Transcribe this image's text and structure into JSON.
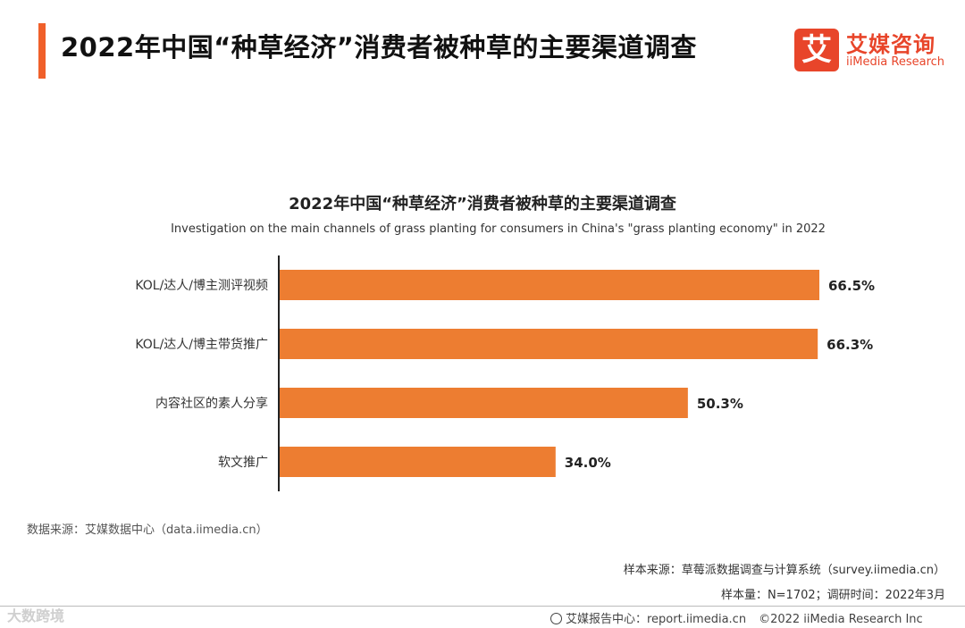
{
  "header": {
    "title": "2022年中国“种草经济”消费者被种草的主要渠道调查",
    "logo_mark": "艾",
    "logo_cn": "艾媒咨询",
    "logo_en": "iiMedia Research"
  },
  "colors": {
    "accent": "#f0602a",
    "bar": "#ed7d31",
    "logo": "#e8452a"
  },
  "chart_data": {
    "type": "bar",
    "orientation": "horizontal",
    "title": "2022年中国“种草经济”消费者被种草的主要渠道调查",
    "subtitle": "Investigation on the main channels of grass planting for consumers in China's \"grass planting economy\" in 2022",
    "categories": [
      "KOL/达人/博主测评视频",
      "KOL/达人/博主带货推广",
      "内容社区的素人分享",
      "软文推广"
    ],
    "values": [
      66.5,
      66.3,
      50.3,
      34.0
    ],
    "value_labels": [
      "66.5%",
      "66.3%",
      "50.3%",
      "34.0%"
    ],
    "unit": "%",
    "xlim": [
      0,
      66.5
    ],
    "grid": false,
    "legend": "none"
  },
  "sources": {
    "data_source": "数据来源：艾媒数据中心（data.iimedia.cn）",
    "sample_source": "样本来源：草莓派数据调查与计算系统（survey.iimedia.cn）",
    "sample_info": "样本量：N=1702；调研时间：2022年3月"
  },
  "footer": {
    "watermark": "大数跨境",
    "report_center": "艾媒报告中心：report.iimedia.cn",
    "copyright": "©2022  iiMedia Research  Inc"
  }
}
